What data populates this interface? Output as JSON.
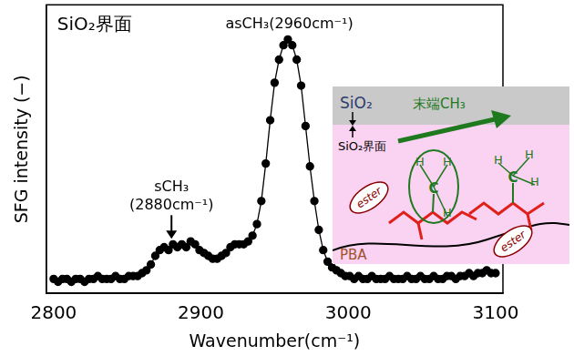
{
  "chart_data": {
    "type": "line",
    "title": "SiO₂界面",
    "x_label": "Wavenumber(cm⁻¹)",
    "y_label": "SFG intensity (−)",
    "x": [
      2800,
      2803,
      2806,
      2809,
      2812,
      2815,
      2818,
      2821,
      2824,
      2827,
      2830,
      2833,
      2836,
      2839,
      2842,
      2845,
      2848,
      2851,
      2854,
      2857,
      2860,
      2863,
      2866,
      2869,
      2872,
      2875,
      2878,
      2881,
      2884,
      2887,
      2890,
      2893,
      2896,
      2899,
      2902,
      2905,
      2908,
      2911,
      2914,
      2917,
      2920,
      2923,
      2926,
      2929,
      2932,
      2935,
      2938,
      2941,
      2944,
      2947,
      2950,
      2953,
      2956,
      2959,
      2962,
      2965,
      2968,
      2971,
      2974,
      2977,
      2980,
      2983,
      2986,
      2989,
      2992,
      2995,
      2998,
      3001,
      3004,
      3007,
      3010,
      3013,
      3016,
      3019,
      3022,
      3025,
      3028,
      3031,
      3034,
      3037,
      3040,
      3043,
      3046,
      3049,
      3052,
      3055,
      3058,
      3061,
      3064,
      3067,
      3070,
      3073,
      3076,
      3079,
      3082,
      3085,
      3088,
      3091,
      3094,
      3097,
      3100
    ],
    "values": [
      0.05,
      0.04,
      0.05,
      0.05,
      0.04,
      0.05,
      0.05,
      0.04,
      0.05,
      0.05,
      0.06,
      0.05,
      0.05,
      0.05,
      0.06,
      0.05,
      0.05,
      0.06,
      0.06,
      0.06,
      0.07,
      0.08,
      0.1,
      0.13,
      0.15,
      0.16,
      0.15,
      0.17,
      0.16,
      0.17,
      0.16,
      0.18,
      0.17,
      0.15,
      0.14,
      0.13,
      0.12,
      0.12,
      0.13,
      0.14,
      0.16,
      0.17,
      0.17,
      0.17,
      0.18,
      0.2,
      0.24,
      0.32,
      0.45,
      0.6,
      0.73,
      0.81,
      0.86,
      0.88,
      0.86,
      0.81,
      0.72,
      0.58,
      0.44,
      0.32,
      0.22,
      0.15,
      0.11,
      0.09,
      0.08,
      0.07,
      0.06,
      0.06,
      0.05,
      0.06,
      0.05,
      0.05,
      0.06,
      0.05,
      0.05,
      0.05,
      0.06,
      0.05,
      0.05,
      0.05,
      0.06,
      0.05,
      0.05,
      0.06,
      0.05,
      0.05,
      0.06,
      0.05,
      0.05,
      0.06,
      0.06,
      0.05,
      0.06,
      0.06,
      0.07,
      0.06,
      0.07,
      0.07,
      0.08,
      0.07,
      0.07
    ],
    "color": "#000000",
    "marker": "circle",
    "line_style": "solid",
    "xlim": [
      2795,
      3105
    ],
    "xticks": [
      2800,
      2900,
      3000,
      3100
    ],
    "ylim": [
      0,
      1
    ],
    "yticks": [],
    "tick_labels": "x",
    "grid": false,
    "annotations": [
      {
        "text": "asCH₃(2960cm⁻¹)",
        "x": 2960
      },
      {
        "text": [
          "sCH₃",
          "(2880cm⁻¹)"
        ],
        "x": 2880
      }
    ]
  },
  "inset": {
    "substrate": "SiO₂",
    "interface": "SiO₂界面",
    "group": "末端CH₃",
    "polymer": "PBA",
    "ester": [
      "ester",
      "ester"
    ],
    "atoms": {
      "carbon": "C",
      "hydrogen": "H"
    }
  }
}
